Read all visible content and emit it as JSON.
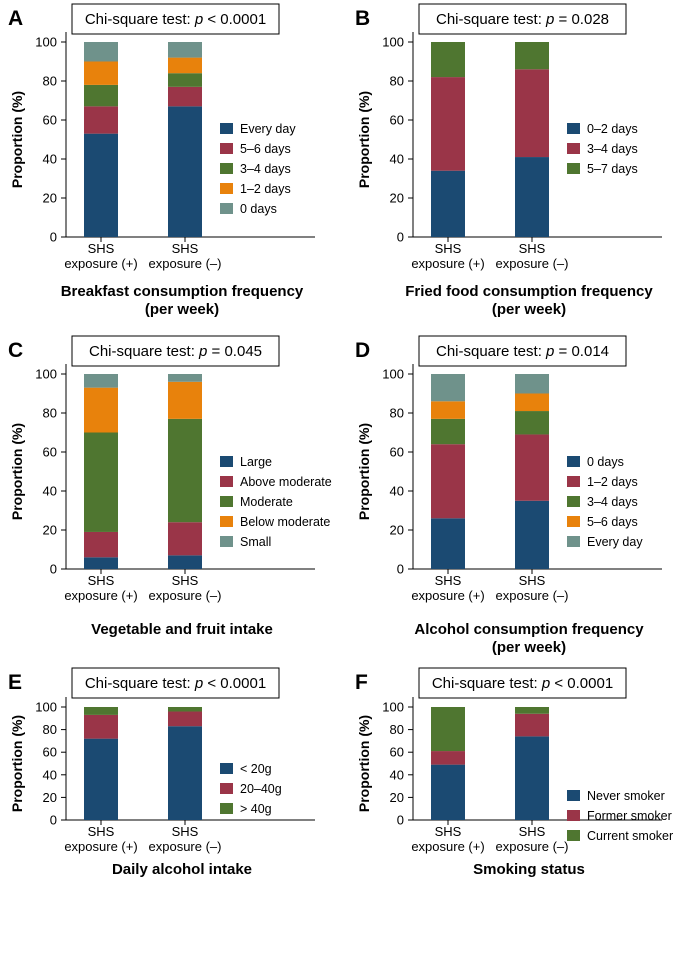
{
  "figure": {
    "colors": {
      "blue": "#1b4a72",
      "red": "#9a3548",
      "green": "#4f7630",
      "orange": "#e8820c",
      "gray": "#6f928b"
    }
  },
  "chart_data": [
    {
      "panel": "A",
      "type": "bar",
      "stacked": true,
      "test_prefix": "Chi-square test: ",
      "test_stat": "p",
      "test_value": " < 0.0001",
      "categories": [
        [
          "SHS",
          "exposure (+)"
        ],
        [
          "SHS",
          "exposure (–)"
        ]
      ],
      "xlabel": [
        "Breakfast consumption frequency",
        "(per week)"
      ],
      "ylabel": "Proportion (%)",
      "ylim": [
        0,
        100
      ],
      "yticks": [
        0,
        20,
        40,
        60,
        80,
        100
      ],
      "series": [
        {
          "name": "Every day",
          "color": "blue",
          "values": [
            53,
            67
          ]
        },
        {
          "name": "5–6 days",
          "color": "red",
          "values": [
            14,
            10
          ]
        },
        {
          "name": "3–4 days",
          "color": "green",
          "values": [
            11,
            7
          ]
        },
        {
          "name": "1–2 days",
          "color": "orange",
          "values": [
            12,
            8
          ]
        },
        {
          "name": "0 days",
          "color": "gray",
          "values": [
            10,
            8
          ]
        }
      ]
    },
    {
      "panel": "B",
      "type": "bar",
      "stacked": true,
      "test_prefix": "Chi-square test: ",
      "test_stat": "p",
      "test_value": " = 0.028",
      "categories": [
        [
          "SHS",
          "exposure (+)"
        ],
        [
          "SHS",
          "exposure (–)"
        ]
      ],
      "xlabel": [
        "Fried food consumption frequency",
        "(per week)"
      ],
      "ylabel": "Proportion (%)",
      "ylim": [
        0,
        100
      ],
      "yticks": [
        0,
        20,
        40,
        60,
        80,
        100
      ],
      "series": [
        {
          "name": "0–2 days",
          "color": "blue",
          "values": [
            34,
            41
          ]
        },
        {
          "name": "3–4 days",
          "color": "red",
          "values": [
            48,
            45
          ]
        },
        {
          "name": "5–7 days",
          "color": "green",
          "values": [
            18,
            14
          ]
        }
      ]
    },
    {
      "panel": "C",
      "type": "bar",
      "stacked": true,
      "test_prefix": "Chi-square test: ",
      "test_stat": "p",
      "test_value": " = 0.045",
      "categories": [
        [
          "SHS",
          "exposure (+)"
        ],
        [
          "SHS",
          "exposure (–)"
        ]
      ],
      "xlabel": [
        "Vegetable and fruit intake"
      ],
      "ylabel": "Proportion (%)",
      "ylim": [
        0,
        100
      ],
      "yticks": [
        0,
        20,
        40,
        60,
        80,
        100
      ],
      "series": [
        {
          "name": "Large",
          "color": "blue",
          "values": [
            6,
            7
          ]
        },
        {
          "name": "Above moderate",
          "color": "red",
          "values": [
            13,
            17
          ]
        },
        {
          "name": "Moderate",
          "color": "green",
          "values": [
            51,
            53
          ]
        },
        {
          "name": "Below moderate",
          "color": "orange",
          "values": [
            23,
            19
          ]
        },
        {
          "name": "Small",
          "color": "gray",
          "values": [
            7,
            4
          ]
        }
      ]
    },
    {
      "panel": "D",
      "type": "bar",
      "stacked": true,
      "test_prefix": "Chi-square test: ",
      "test_stat": "p",
      "test_value": " = 0.014",
      "categories": [
        [
          "SHS",
          "exposure (+)"
        ],
        [
          "SHS",
          "exposure (–)"
        ]
      ],
      "xlabel": [
        "Alcohol consumption frequency",
        "(per week)"
      ],
      "ylabel": "Proportion (%)",
      "ylim": [
        0,
        100
      ],
      "yticks": [
        0,
        20,
        40,
        60,
        80,
        100
      ],
      "series": [
        {
          "name": "0 days",
          "color": "blue",
          "values": [
            26,
            35
          ]
        },
        {
          "name": "1–2 days",
          "color": "red",
          "values": [
            38,
            34
          ]
        },
        {
          "name": "3–4 days",
          "color": "green",
          "values": [
            13,
            12
          ]
        },
        {
          "name": "5–6 days",
          "color": "orange",
          "values": [
            9,
            9
          ]
        },
        {
          "name": "Every day",
          "color": "gray",
          "values": [
            14,
            10
          ]
        }
      ]
    },
    {
      "panel": "E",
      "type": "bar",
      "stacked": true,
      "test_prefix": "Chi-square test: ",
      "test_stat": "p",
      "test_value": " < 0.0001",
      "categories": [
        [
          "SHS",
          "exposure (+)"
        ],
        [
          "SHS",
          "exposure (–)"
        ]
      ],
      "xlabel": [
        "Daily alcohol intake"
      ],
      "ylabel": "Proportion (%)",
      "ylim": [
        0,
        100
      ],
      "yticks": [
        0,
        20,
        40,
        60,
        80,
        100
      ],
      "series": [
        {
          "name": "< 20g",
          "color": "blue",
          "values": [
            72,
            83
          ]
        },
        {
          "name": "20–40g",
          "color": "red",
          "values": [
            21,
            13
          ]
        },
        {
          "name": "> 40g",
          "color": "green",
          "values": [
            7,
            4
          ]
        }
      ]
    },
    {
      "panel": "F",
      "type": "bar",
      "stacked": true,
      "test_prefix": "Chi-square test: ",
      "test_stat": "p",
      "test_value": " < 0.0001",
      "categories": [
        [
          "SHS",
          "exposure (+)"
        ],
        [
          "SHS",
          "exposure (–)"
        ]
      ],
      "xlabel": [
        "Smoking status"
      ],
      "ylabel": "Proportion (%)",
      "ylim": [
        0,
        100
      ],
      "yticks": [
        0,
        20,
        40,
        60,
        80,
        100
      ],
      "series": [
        {
          "name": "Never smoker",
          "color": "blue",
          "values": [
            49,
            74
          ]
        },
        {
          "name": "Former smoker",
          "color": "red",
          "values": [
            12,
            20
          ]
        },
        {
          "name": "Current smoker",
          "color": "green",
          "values": [
            39,
            6
          ]
        }
      ]
    }
  ]
}
